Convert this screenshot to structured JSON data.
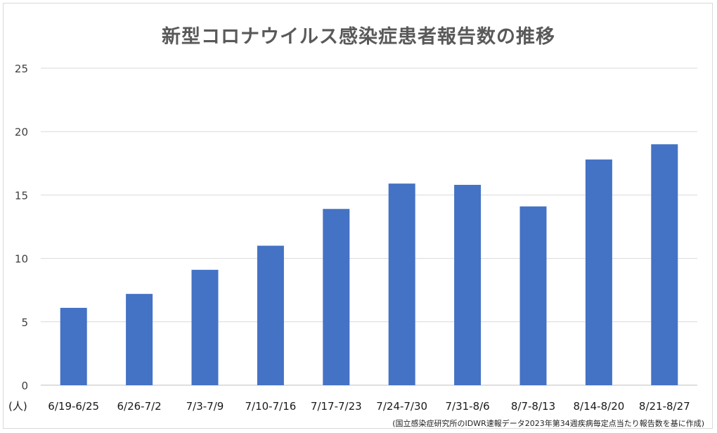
{
  "chart_data": {
    "type": "bar",
    "title": "新型コロナウイルス感染症患者報告数の推移",
    "ylabel": "(人)",
    "xlabel": "",
    "ylim": [
      0,
      25
    ],
    "yticks": [
      0,
      5,
      10,
      15,
      20,
      25
    ],
    "grid": true,
    "bar_color": "#4472C4",
    "categories": [
      "6/19-6/25",
      "6/26-7/2",
      "7/3-7/9",
      "7/10-7/16",
      "7/17-7/23",
      "7/24-7/30",
      "7/31-8/6",
      "8/7-8/13",
      "8/14-8/20",
      "8/21-8/27"
    ],
    "values": [
      6.1,
      7.2,
      9.1,
      11.0,
      13.9,
      15.9,
      15.8,
      14.1,
      17.8,
      19.0
    ]
  },
  "source_note": "(国立感染症研究所のIDWR速報データ2023年第34週疾病毎定点当たり報告数を基に作成)"
}
